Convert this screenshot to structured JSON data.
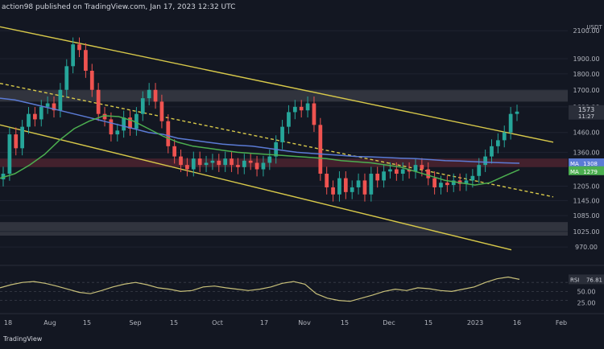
{
  "header": {
    "publisher_text": "action98 published on TradingView.com, Jan 17, 2023 12:32 UTC"
  },
  "colors": {
    "background": "#131722",
    "candle_up": "#26a69a",
    "candle_down": "#ef5350",
    "channel_line": "#d8c94a",
    "ma_blue": "#5b7bd5",
    "ma_green": "#4caf50",
    "rsi_line": "#c8c07a",
    "resistance_zone": "#4a4d55",
    "support_zone": "#6b2a36",
    "axis_text": "#b2b5be"
  },
  "chart_data": [
    {
      "type": "candlestick",
      "title": "",
      "currency": "USDT",
      "y_axis_ticks": [
        "2100.00",
        "1900.00",
        "1800.00",
        "1700.00",
        "1600.00",
        "1460.00",
        "1360.00",
        "1205.00",
        "1145.00",
        "1085.00",
        "1025.00",
        "970.00"
      ],
      "x_axis_ticks": [
        "18",
        "Aug",
        "15",
        "Sep",
        "15",
        "Oct",
        "17",
        "Nov",
        "15",
        "Dec",
        "15",
        "2023",
        "16",
        "Feb"
      ],
      "price_labels": [
        {
          "text": "1573",
          "series": "last_price"
        },
        {
          "text": "11:27",
          "series": "countdown"
        },
        {
          "text": "1308",
          "series": "MA"
        },
        {
          "text": "1279",
          "series": "MA"
        }
      ],
      "close_series": [
        1260,
        1450,
        1380,
        1490,
        1560,
        1530,
        1600,
        1620,
        1580,
        1700,
        1850,
        2000,
        1960,
        1820,
        1700,
        1560,
        1530,
        1450,
        1470,
        1540,
        1480,
        1560,
        1650,
        1700,
        1630,
        1520,
        1390,
        1340,
        1300,
        1280,
        1330,
        1300,
        1310,
        1320,
        1300,
        1330,
        1300,
        1290,
        1320,
        1310,
        1280,
        1310,
        1340,
        1410,
        1490,
        1570,
        1600,
        1580,
        1620,
        1500,
        1260,
        1200,
        1170,
        1240,
        1180,
        1200,
        1230,
        1170,
        1260,
        1230,
        1270,
        1280,
        1260,
        1280,
        1270,
        1300,
        1280,
        1240,
        1200,
        1220,
        1210,
        1230,
        1215,
        1230,
        1250,
        1300,
        1340,
        1390,
        1420,
        1460,
        1560,
        1573
      ],
      "series": [
        {
          "name": "MA",
          "value_label": "1308",
          "values": [
            1650,
            1640,
            1620,
            1600,
            1580,
            1560,
            1540,
            1520,
            1500,
            1480,
            1460,
            1450,
            1430,
            1420,
            1410,
            1400,
            1395,
            1390,
            1380,
            1370,
            1360,
            1355,
            1350,
            1345,
            1340,
            1338,
            1335,
            1332,
            1330,
            1325,
            1320,
            1318,
            1315,
            1312,
            1310,
            1308
          ]
        },
        {
          "name": "MA",
          "value_label": "1279",
          "values": [
            1240,
            1260,
            1300,
            1350,
            1420,
            1480,
            1520,
            1550,
            1545,
            1520,
            1480,
            1440,
            1410,
            1390,
            1380,
            1370,
            1360,
            1355,
            1350,
            1345,
            1340,
            1335,
            1330,
            1320,
            1315,
            1310,
            1300,
            1290,
            1270,
            1250,
            1230,
            1220,
            1210,
            1220,
            1250,
            1279
          ]
        }
      ],
      "zones": [
        {
          "name": "resistance",
          "from": 1630,
          "to": 1700
        },
        {
          "name": "support",
          "from": 1290,
          "to": 1330
        },
        {
          "name": "support-low",
          "from": 1010,
          "to": 1060
        }
      ],
      "ylim": [
        940,
        2200
      ],
      "y_scale": "log"
    },
    {
      "type": "line",
      "title": "",
      "indicator": "RSI",
      "value_label": "76.81",
      "y_axis_ticks": [
        "50.00",
        "25.00"
      ],
      "values": [
        58,
        65,
        70,
        72,
        68,
        62,
        55,
        48,
        45,
        52,
        60,
        66,
        70,
        65,
        58,
        55,
        50,
        52,
        60,
        62,
        58,
        55,
        52,
        55,
        60,
        68,
        72,
        66,
        45,
        35,
        30,
        28,
        35,
        42,
        50,
        55,
        52,
        58,
        56,
        52,
        50,
        55,
        60,
        70,
        78,
        82,
        76.81
      ],
      "ylim": [
        15,
        90
      ]
    }
  ]
}
